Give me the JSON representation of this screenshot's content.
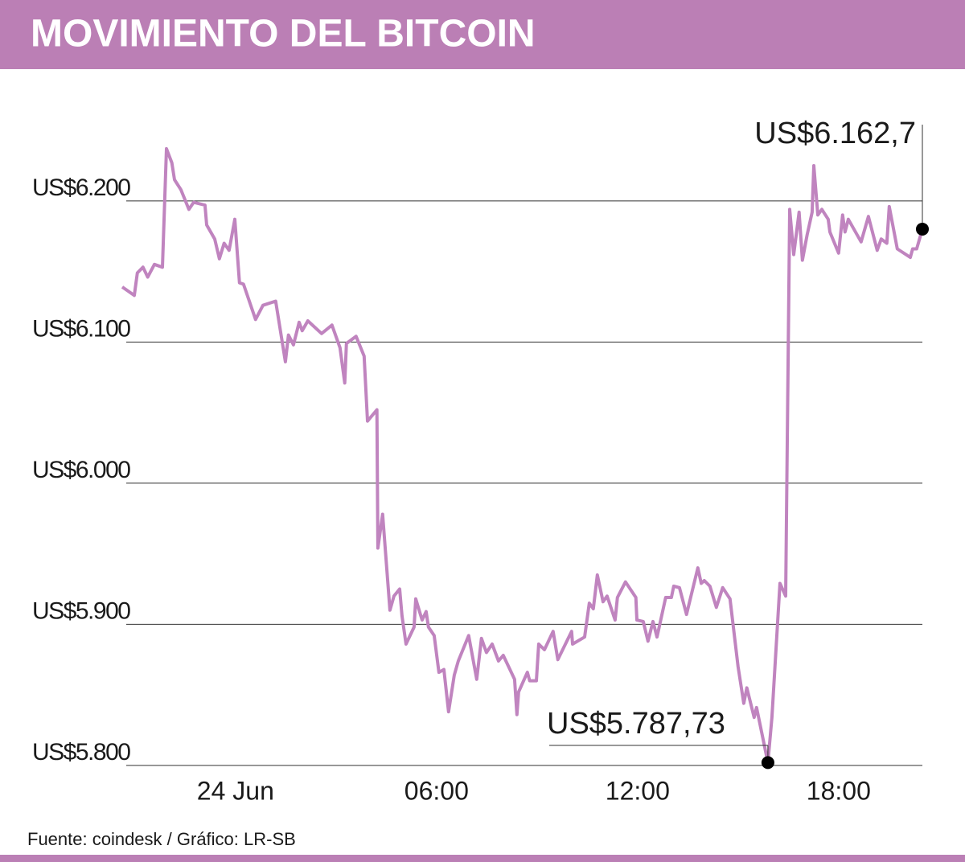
{
  "chart_data": {
    "type": "line",
    "title": "MOVIMIENTO DEL BITCOIN",
    "source": "Fuente: coindesk  / Gráfico: LR-SB",
    "annotations": [
      "US$6.162,7",
      "US$5.787,73"
    ],
    "x": [
      -3.38,
      -3.02,
      -2.93,
      -2.76,
      -2.62,
      -2.42,
      -2.18,
      -2.06,
      -1.9,
      -1.82,
      -1.63,
      -1.39,
      -1.25,
      -0.91,
      -0.86,
      -0.62,
      -0.48,
      -0.34,
      -0.19,
      -0.02,
      0.12,
      0.24,
      0.6,
      0.82,
      1.2,
      1.49,
      1.58,
      1.73,
      1.9,
      1.99,
      2.16,
      2.57,
      2.88,
      3.12,
      3.26,
      3.31,
      3.6,
      3.84,
      3.94,
      4.22,
      4.25,
      4.39,
      4.61,
      4.73,
      4.9,
      4.97,
      5.09,
      5.33,
      5.38,
      5.57,
      5.69,
      5.76,
      5.93,
      6.07,
      6.22,
      6.36,
      6.53,
      6.65,
      6.96,
      7.2,
      7.34,
      7.49,
      7.66,
      7.85,
      7.99,
      8.33,
      8.4,
      8.45,
      8.71,
      8.78,
      8.98,
      9.05,
      9.22,
      9.48,
      9.62,
      10.03,
      10.06,
      10.42,
      10.56,
      10.68,
      10.8,
      10.97,
      11.09,
      11.33,
      11.4,
      11.64,
      11.95,
      11.98,
      12.17,
      12.31,
      12.46,
      12.58,
      12.84,
      13.01,
      13.08,
      13.25,
      13.46,
      13.8,
      13.9,
      13.99,
      14.16,
      14.35,
      14.54,
      14.76,
      15.0,
      15.17,
      15.26,
      15.48,
      15.55,
      15.82,
      15.89,
      16.01,
      16.25,
      16.42,
      16.54,
      16.66,
      16.82,
      16.92,
      17.06,
      17.21,
      17.26,
      17.38,
      17.5,
      17.69,
      17.74,
      18.0,
      18.12,
      18.19,
      18.29,
      18.67,
      18.89,
      19.15,
      19.27,
      19.44,
      19.51,
      19.75,
      20.14,
      20.21,
      20.33,
      20.5
    ],
    "series": [
      {
        "name": "Bitcoin",
        "color": "#c084bf",
        "values": [
          6139,
          6133,
          6149,
          6153,
          6146,
          6155,
          6153,
          6237,
          6227,
          6215,
          6208,
          6194,
          6199,
          6197,
          6183,
          6173,
          6159,
          6170,
          6165,
          6187,
          6142,
          6141,
          6116,
          6126,
          6129,
          6086,
          6105,
          6098,
          6114,
          6108,
          6115,
          6106,
          6112,
          6096,
          6071,
          6099,
          6104,
          6090,
          6044,
          6052,
          5954,
          5978,
          5910,
          5920,
          5925,
          5906,
          5886,
          5898,
          5918,
          5903,
          5909,
          5898,
          5892,
          5866,
          5868,
          5838,
          5864,
          5874,
          5892,
          5861,
          5890,
          5880,
          5886,
          5874,
          5878,
          5861,
          5836,
          5852,
          5866,
          5860,
          5860,
          5886,
          5882,
          5895,
          5875,
          5895,
          5886,
          5891,
          5915,
          5911,
          5935,
          5916,
          5920,
          5903,
          5919,
          5930,
          5919,
          5903,
          5902,
          5888,
          5902,
          5891,
          5919,
          5919,
          5927,
          5926,
          5907,
          5940,
          5929,
          5931,
          5927,
          5912,
          5926,
          5918,
          5870,
          5844,
          5855,
          5834,
          5841,
          5810,
          5802,
          5834,
          5929,
          5920,
          6194,
          6162,
          6192,
          6158,
          6176,
          6192,
          6225,
          6190,
          6194,
          6187,
          6178,
          6163,
          6190,
          6178,
          6187,
          6171,
          6189,
          6165,
          6173,
          6170,
          6196,
          6166,
          6160,
          6166,
          6166,
          6180
        ]
      }
    ],
    "xlim": [
      -3.5,
      20.5
    ],
    "xticks": [
      {
        "value": 0,
        "label": "24 Jun"
      },
      {
        "value": 6,
        "label": "06:00"
      },
      {
        "value": 12,
        "label": "12:00"
      },
      {
        "value": 18,
        "label": "18:00"
      }
    ],
    "ylim": [
      5780,
      6270
    ],
    "yticks": [
      {
        "value": 5800,
        "label": "US$5.800"
      },
      {
        "value": 5900,
        "label": "US$5.900"
      },
      {
        "value": 6000,
        "label": "US$6.000"
      },
      {
        "value": 6100,
        "label": "US$6.100"
      },
      {
        "value": 6200,
        "label": "US$6.200"
      }
    ],
    "grid": true
  }
}
